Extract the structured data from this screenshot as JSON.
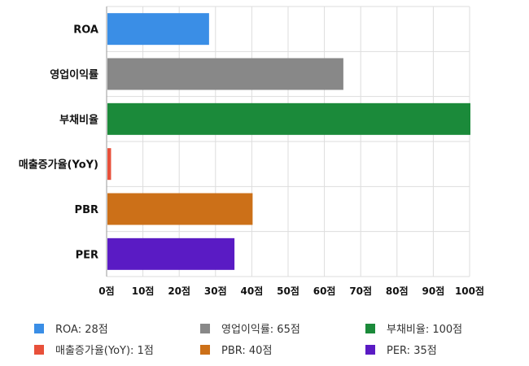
{
  "chart_data": {
    "type": "bar",
    "orientation": "horizontal",
    "categories": [
      "ROA",
      "영업이익률",
      "부채비율",
      "매출증가율(YoY)",
      "PBR",
      "PER"
    ],
    "values": [
      28,
      65,
      100,
      1,
      40,
      35
    ],
    "colors": [
      "#3a8ee6",
      "#888888",
      "#1b8a3a",
      "#e8503a",
      "#cc7018",
      "#5a1bc4"
    ],
    "xlim": [
      0,
      100
    ],
    "xticks": [
      0,
      10,
      20,
      30,
      40,
      50,
      60,
      70,
      80,
      90,
      100
    ],
    "tick_suffix": "점",
    "grid": true,
    "legend_position": "bottom",
    "legend": [
      {
        "label": "ROA: 28점",
        "color": "#3a8ee6"
      },
      {
        "label": "영업이익률: 65점",
        "color": "#888888"
      },
      {
        "label": "부채비율: 100점",
        "color": "#1b8a3a"
      },
      {
        "label": "매출증가율(YoY): 1점",
        "color": "#e8503a"
      },
      {
        "label": "PBR: 40점",
        "color": "#cc7018"
      },
      {
        "label": "PER: 35점",
        "color": "#5a1bc4"
      }
    ]
  }
}
